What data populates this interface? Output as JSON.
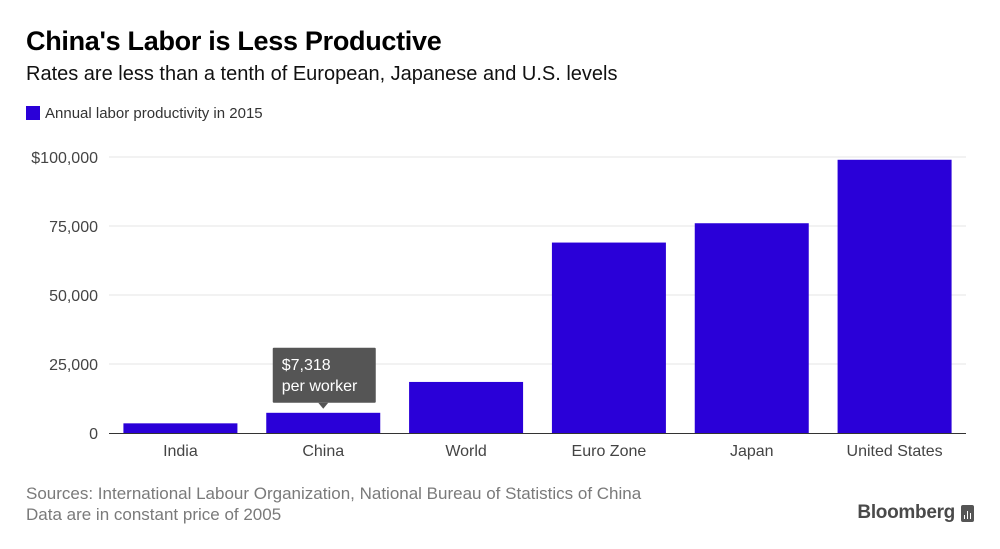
{
  "header": {
    "title": "China's Labor is Less Productive",
    "subtitle": "Rates are less than a tenth of European, Japanese and U.S. levels"
  },
  "legend": {
    "label": "Annual labor productivity in 2015"
  },
  "footer": {
    "sources": "Sources: International Labour Organization, National Bureau of Statistics of China",
    "note": "Data are in constant price of 2005"
  },
  "brand": {
    "name": "Bloomberg"
  },
  "colors": {
    "bar": "#2a00d8",
    "tooltip_bg": "#555555",
    "grid": "#e6e6e6",
    "axis_text": "#444444"
  },
  "chart_data": {
    "type": "bar",
    "title": "China's Labor is Less Productive",
    "subtitle": "Rates are less than a tenth of European, Japanese and U.S. levels",
    "categories": [
      "India",
      "China",
      "World",
      "Euro Zone",
      "Japan",
      "United States"
    ],
    "series": [
      {
        "name": "Annual labor productivity in 2015",
        "values": [
          3500,
          7318,
          18500,
          69000,
          76000,
          99000
        ]
      }
    ],
    "ylim": [
      0,
      100000
    ],
    "yticks": [
      0,
      25000,
      50000,
      75000,
      100000
    ],
    "ytick_labels": [
      "0",
      "25,000",
      "50,000",
      "75,000",
      "$100,000"
    ],
    "grid": true,
    "legend_position": "top-left",
    "annotation": {
      "category": "China",
      "lines": [
        "$7,318",
        "per worker"
      ]
    }
  }
}
